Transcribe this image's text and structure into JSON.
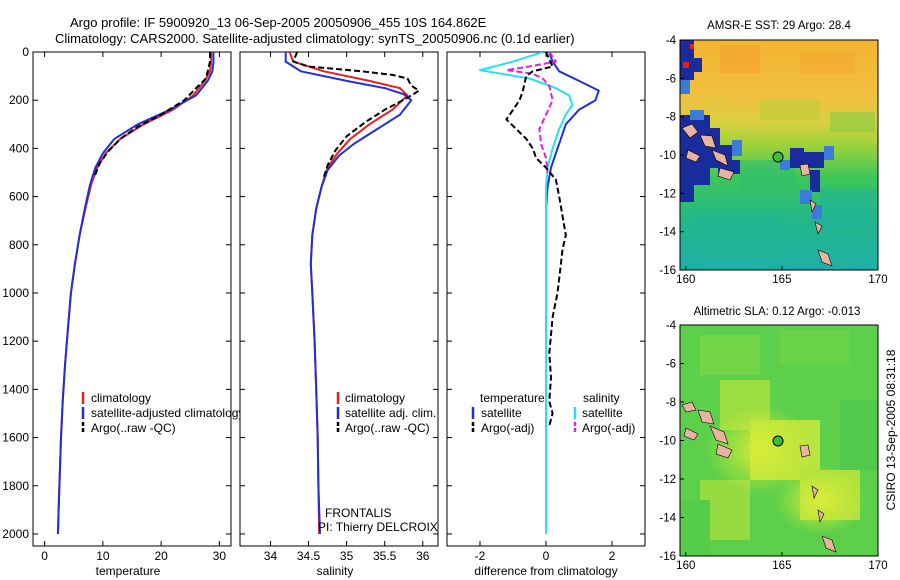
{
  "header": {
    "title_line1": "Argo profile: IF 5900920_13 06-Sep-2005 20050906_455 10S 164.862E",
    "title_line2": "Climatology: CARS2000. Satellite-adjusted climatology: synTS_20050906.nc (0.1d earlier)"
  },
  "side_label": "CSIRO 13-Sep-2005 08:31:18",
  "colors": {
    "climatology": "#e8201a",
    "satellite": "#1f2fdc",
    "argo": "#000000",
    "sal_satellite": "#28e0f0",
    "sal_argo": "#e020e0"
  },
  "chart_data": [
    {
      "type": "line",
      "id": "temperature",
      "xlabel": "temperature",
      "xlim": [
        -2,
        32
      ],
      "ylim": [
        2050,
        0
      ],
      "xticks": [
        0,
        10,
        20,
        30
      ],
      "yticks": [
        0,
        200,
        400,
        600,
        800,
        1000,
        1200,
        1400,
        1600,
        1800,
        2000
      ],
      "legend": [
        "climatology",
        "satellite-adjusted climatology",
        "Argo(..raw -QC)"
      ],
      "series": [
        {
          "name": "climatology",
          "color_key": "climatology",
          "dash": "",
          "points": [
            [
              28.6,
              0
            ],
            [
              28.6,
              40
            ],
            [
              28.4,
              80
            ],
            [
              27.5,
              120
            ],
            [
              25.5,
              180
            ],
            [
              22,
              240
            ],
            [
              17,
              300
            ],
            [
              13,
              360
            ],
            [
              10.5,
              420
            ],
            [
              9,
              480
            ],
            [
              8,
              550
            ],
            [
              7,
              650
            ],
            [
              6,
              760
            ],
            [
              5.2,
              880
            ],
            [
              4.5,
              1000
            ],
            [
              4,
              1150
            ],
            [
              3.5,
              1300
            ],
            [
              3.1,
              1450
            ],
            [
              2.8,
              1600
            ],
            [
              2.6,
              1750
            ],
            [
              2.4,
              1900
            ],
            [
              2.3,
              2000
            ]
          ]
        },
        {
          "name": "satellite-adjusted climatology",
          "color_key": "satellite",
          "dash": "",
          "points": [
            [
              29,
              0
            ],
            [
              29,
              40
            ],
            [
              28.8,
              80
            ],
            [
              28,
              120
            ],
            [
              26,
              180
            ],
            [
              21.5,
              240
            ],
            [
              16,
              300
            ],
            [
              12,
              360
            ],
            [
              10,
              420
            ],
            [
              8.7,
              480
            ],
            [
              7.8,
              550
            ],
            [
              6.9,
              650
            ],
            [
              6,
              760
            ],
            [
              5.2,
              880
            ],
            [
              4.5,
              1000
            ],
            [
              4,
              1150
            ],
            [
              3.5,
              1300
            ],
            [
              3.1,
              1450
            ],
            [
              2.8,
              1600
            ],
            [
              2.6,
              1750
            ],
            [
              2.4,
              1900
            ],
            [
              2.3,
              2000
            ]
          ]
        },
        {
          "name": "Argo(..raw -QC)",
          "color_key": "argo",
          "dash": "6,3",
          "points": [
            [
              28.4,
              0
            ],
            [
              28.4,
              40
            ],
            [
              28,
              80
            ],
            [
              27.7,
              110
            ],
            [
              26,
              150
            ],
            [
              24,
              200
            ],
            [
              20,
              260
            ],
            [
              16,
              310
            ],
            [
              13,
              360
            ],
            [
              11,
              410
            ],
            [
              9.5,
              460
            ],
            [
              8.5,
              520
            ]
          ]
        }
      ]
    },
    {
      "type": "line",
      "id": "salinity",
      "xlabel": "salinity",
      "xlim": [
        33.6,
        36.2
      ],
      "ylim": [
        2050,
        0
      ],
      "xticks": [
        34,
        34.5,
        35,
        35.5,
        36
      ],
      "yticks": [
        0,
        200,
        400,
        600,
        800,
        1000,
        1200,
        1400,
        1600,
        1800,
        2000
      ],
      "legend": [
        "climatology",
        "satellite adj. clim.",
        "Argo(..raw -QC)"
      ],
      "annotation": [
        "FRONTALIS",
        "PI: Thierry DELCROIX"
      ],
      "series": [
        {
          "name": "climatology",
          "color_key": "climatology",
          "dash": "",
          "points": [
            [
              34.25,
              0
            ],
            [
              34.3,
              40
            ],
            [
              34.7,
              80
            ],
            [
              35.3,
              120
            ],
            [
              35.7,
              150
            ],
            [
              35.8,
              180
            ],
            [
              35.6,
              240
            ],
            [
              35.3,
              300
            ],
            [
              35.05,
              360
            ],
            [
              34.88,
              420
            ],
            [
              34.75,
              480
            ],
            [
              34.68,
              550
            ],
            [
              34.6,
              650
            ],
            [
              34.55,
              760
            ],
            [
              34.53,
              880
            ],
            [
              34.55,
              1000
            ],
            [
              34.58,
              1200
            ],
            [
              34.6,
              1400
            ],
            [
              34.62,
              1600
            ],
            [
              34.63,
              1800
            ],
            [
              34.64,
              2000
            ]
          ]
        },
        {
          "name": "satellite adj. clim.",
          "color_key": "satellite",
          "dash": "",
          "points": [
            [
              34.2,
              0
            ],
            [
              34.2,
              40
            ],
            [
              34.4,
              80
            ],
            [
              35.0,
              120
            ],
            [
              35.5,
              150
            ],
            [
              35.75,
              175
            ],
            [
              35.85,
              200
            ],
            [
              35.7,
              260
            ],
            [
              35.4,
              320
            ],
            [
              35.1,
              380
            ],
            [
              34.9,
              430
            ],
            [
              34.75,
              490
            ],
            [
              34.67,
              560
            ],
            [
              34.6,
              650
            ],
            [
              34.55,
              760
            ],
            [
              34.53,
              880
            ],
            [
              34.55,
              1000
            ],
            [
              34.58,
              1200
            ],
            [
              34.6,
              1400
            ],
            [
              34.62,
              1600
            ],
            [
              34.63,
              1800
            ],
            [
              34.65,
              2000
            ]
          ]
        },
        {
          "name": "Argo(..raw -QC)",
          "color_key": "argo",
          "dash": "6,3",
          "points": [
            [
              34.35,
              0
            ],
            [
              34.3,
              40
            ],
            [
              34.5,
              60
            ],
            [
              35.2,
              80
            ],
            [
              35.6,
              95
            ],
            [
              35.8,
              110
            ],
            [
              35.85,
              140
            ],
            [
              35.95,
              160
            ],
            [
              35.8,
              190
            ],
            [
              35.5,
              240
            ],
            [
              35.25,
              290
            ],
            [
              35.0,
              350
            ],
            [
              34.85,
              410
            ],
            [
              34.75,
              470
            ],
            [
              34.7,
              520
            ]
          ]
        }
      ]
    },
    {
      "type": "line",
      "id": "difference",
      "xlabel": "difference from climatology",
      "xlim": [
        -3,
        3
      ],
      "ylim": [
        2050,
        0
      ],
      "xticks": [
        -2,
        0,
        2
      ],
      "yticks": [
        0,
        200,
        400,
        600,
        800,
        1000,
        1200,
        1400,
        1600,
        1800,
        2000
      ],
      "legend_left_title": "temperature",
      "legend_right_title": "salinity",
      "legend_left": [
        "satellite",
        "Argo(-adj)"
      ],
      "legend_right": [
        "satellite",
        "Argo(-adj)"
      ],
      "series": [
        {
          "name": "temperature satellite",
          "color_key": "satellite",
          "dash": "",
          "points": [
            [
              0.1,
              0
            ],
            [
              0.2,
              40
            ],
            [
              0.4,
              80
            ],
            [
              1.0,
              120
            ],
            [
              1.6,
              160
            ],
            [
              1.5,
              200
            ],
            [
              1.0,
              240
            ],
            [
              0.6,
              300
            ],
            [
              0.45,
              360
            ],
            [
              0.3,
              420
            ],
            [
              0.15,
              480
            ],
            [
              0.05,
              560
            ],
            [
              0,
              650
            ],
            [
              0,
              800
            ],
            [
              0,
              1000
            ],
            [
              0,
              1200
            ],
            [
              0,
              1400
            ],
            [
              0,
              1600
            ],
            [
              0,
              1800
            ],
            [
              0,
              2000
            ]
          ]
        },
        {
          "name": "salinity satellite",
          "color_key": "sal_satellite",
          "dash": "",
          "points": [
            [
              -0.1,
              0
            ],
            [
              -1.0,
              40
            ],
            [
              -2.0,
              75
            ],
            [
              -0.5,
              110
            ],
            [
              0.3,
              150
            ],
            [
              0.7,
              180
            ],
            [
              0.8,
              220
            ],
            [
              0.6,
              260
            ],
            [
              0.4,
              320
            ],
            [
              0.2,
              400
            ],
            [
              0.05,
              480
            ],
            [
              0,
              560
            ],
            [
              0,
              700
            ],
            [
              0,
              900
            ],
            [
              0,
              1100
            ],
            [
              0,
              1300
            ],
            [
              0,
              1500
            ],
            [
              0,
              1700
            ],
            [
              0,
              1900
            ],
            [
              0,
              2000
            ]
          ]
        },
        {
          "name": "salinity Argo(-adj)",
          "color_key": "sal_argo",
          "dash": "6,3",
          "points": [
            [
              0.1,
              0
            ],
            [
              0.3,
              40
            ],
            [
              -0.5,
              60
            ],
            [
              -1.2,
              75
            ],
            [
              -0.4,
              90
            ],
            [
              -0.1,
              110
            ],
            [
              0.1,
              140
            ],
            [
              0.2,
              200
            ],
            [
              0.0,
              260
            ],
            [
              -0.2,
              320
            ],
            [
              -0.15,
              380
            ],
            [
              0,
              440
            ],
            [
              0.05,
              500
            ]
          ]
        },
        {
          "name": "temperature Argo(-adj)",
          "color_key": "argo",
          "dash": "6,3",
          "points": [
            [
              0,
              0
            ],
            [
              0.1,
              30
            ],
            [
              0.2,
              60
            ],
            [
              -0.4,
              80
            ],
            [
              -0.6,
              100
            ],
            [
              -0.7,
              160
            ],
            [
              -0.8,
              200
            ],
            [
              -1.0,
              240
            ],
            [
              -1.2,
              280
            ],
            [
              -0.9,
              320
            ],
            [
              -0.6,
              360
            ],
            [
              -0.4,
              400
            ],
            [
              -0.3,
              440
            ],
            [
              0,
              480
            ],
            [
              0.3,
              530
            ],
            [
              0.4,
              600
            ],
            [
              0.5,
              680
            ],
            [
              0.6,
              760
            ],
            [
              0.5,
              820
            ],
            [
              0.45,
              880
            ],
            [
              0.4,
              940
            ],
            [
              0.35,
              1000
            ],
            [
              0.2,
              1100
            ],
            [
              0.1,
              1250
            ],
            [
              0.15,
              1350
            ],
            [
              0.1,
              1450
            ],
            [
              0.2,
              1500
            ],
            [
              0.1,
              1550
            ]
          ]
        }
      ]
    },
    {
      "type": "heatmap",
      "id": "sst_map",
      "title": "AMSR-E SST: 29  Argo: 28.4",
      "xlim": [
        159.7,
        170
      ],
      "ylim": [
        -16,
        -4
      ],
      "xticks": [
        160,
        165,
        170
      ],
      "yticks": [
        -4,
        -6,
        -8,
        -10,
        -12,
        -14,
        -16
      ],
      "marker": [
        164.862,
        -10
      ]
    },
    {
      "type": "heatmap",
      "id": "sla_map",
      "title": "Altimetric SLA: 0.12  Argo: -0.013",
      "xlim": [
        159.7,
        170
      ],
      "ylim": [
        -16,
        -4
      ],
      "xticks": [
        160,
        165,
        170
      ],
      "yticks": [
        -4,
        -6,
        -8,
        -10,
        -12,
        -14,
        -16
      ],
      "marker": [
        164.862,
        -10
      ]
    }
  ]
}
